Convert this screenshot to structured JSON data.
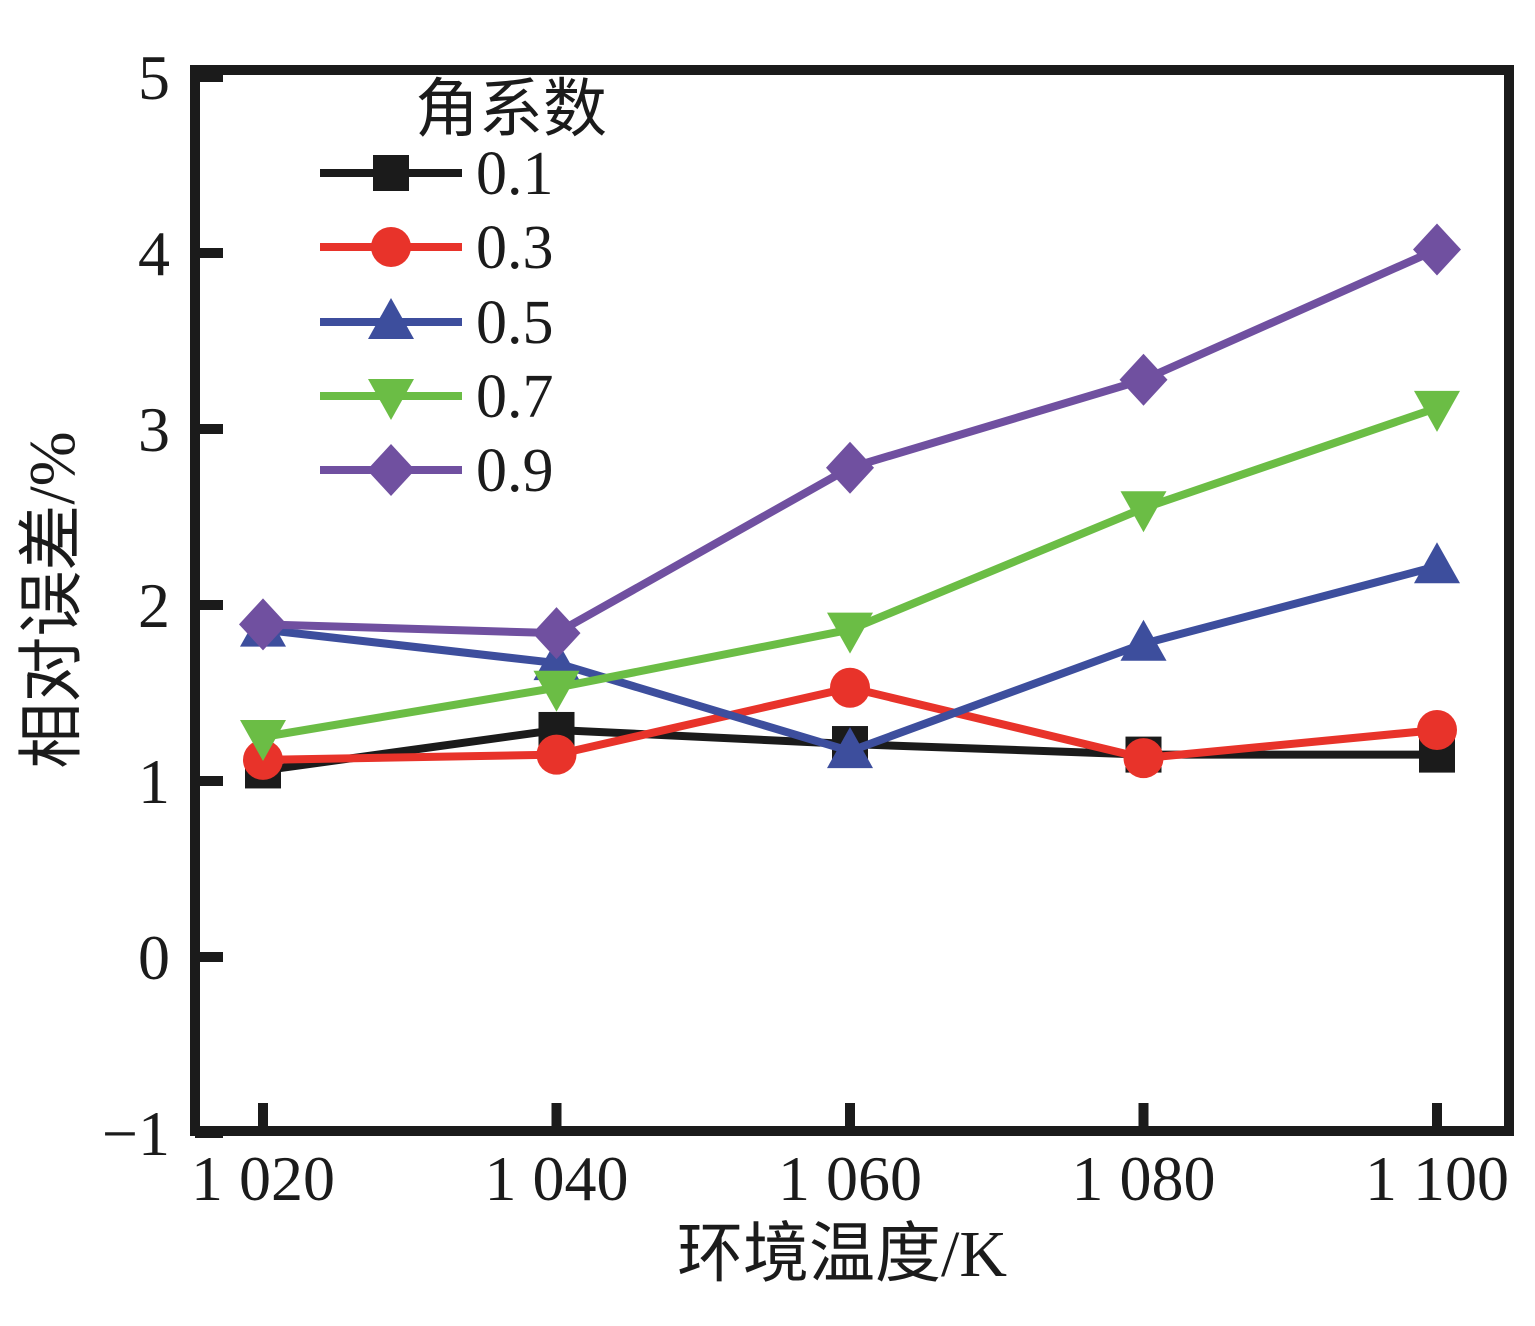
{
  "chart_data": {
    "type": "line",
    "title": "",
    "legend_title": "角系数",
    "legend_position": "upper-left-inside",
    "xlabel": "环境温度/K",
    "ylabel": "相对误差/%",
    "x": [
      1020,
      1040,
      1060,
      1080,
      1100
    ],
    "xtick_labels": [
      "1 020",
      "1 040",
      "1 060",
      "1 080",
      "1 100"
    ],
    "xlim": [
      1015,
      1105
    ],
    "yticks": [
      -1,
      0,
      1,
      2,
      3,
      4,
      5
    ],
    "ytick_labels": [
      "−1",
      "0",
      "1",
      "2",
      "3",
      "4",
      "5"
    ],
    "ylim": [
      -1,
      5
    ],
    "grid": false,
    "ink_color": "#1b1b1b",
    "series": [
      {
        "name": "0.1",
        "color": "#1b1b1b",
        "marker": "square",
        "values": [
          1.06,
          1.29,
          1.21,
          1.15,
          1.15
        ]
      },
      {
        "name": "0.3",
        "color": "#e8332a",
        "marker": "circle",
        "values": [
          1.12,
          1.15,
          1.53,
          1.13,
          1.29
        ]
      },
      {
        "name": "0.5",
        "color": "#3d4e9d",
        "marker": "triangle-up",
        "values": [
          1.86,
          1.67,
          1.17,
          1.78,
          2.22
        ]
      },
      {
        "name": "0.7",
        "color": "#6bbd45",
        "marker": "triangle-down",
        "values": [
          1.25,
          1.53,
          1.86,
          2.55,
          3.12
        ]
      },
      {
        "name": "0.9",
        "color": "#7050a0",
        "marker": "diamond",
        "values": [
          1.89,
          1.84,
          2.78,
          3.28,
          4.02
        ]
      }
    ]
  }
}
